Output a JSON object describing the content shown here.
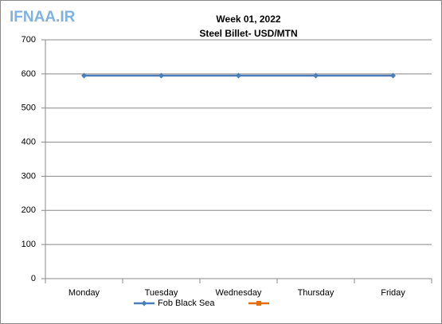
{
  "watermark": "IFNAA.IR",
  "chart_data": {
    "type": "line",
    "title": "Week 01, 2022",
    "subtitle": "Steel Billet- USD/MTN",
    "categories": [
      "Monday",
      "Tuesday",
      "Wednesday",
      "Thursday",
      "Friday"
    ],
    "series": [
      {
        "name": "Fob Black Sea",
        "color": "#4a7ebb",
        "values": [
          595,
          595,
          595,
          595,
          595
        ]
      },
      {
        "color": "#e46c0a",
        "values": [
          null,
          null,
          null,
          null,
          null
        ]
      }
    ],
    "ylim": [
      0,
      700
    ],
    "yticks": [
      0,
      100,
      200,
      300,
      400,
      500,
      600,
      700
    ],
    "grid": true,
    "legend": "bottom"
  }
}
